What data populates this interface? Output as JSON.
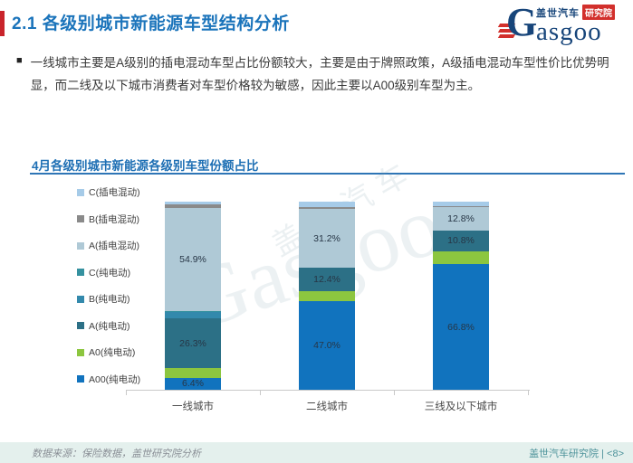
{
  "page": {
    "title": "2.1 各级别城市新能源车型结构分析",
    "bullet_text": "一线城市主要是A级别的插电混动车型占比份额较大，主要是由于牌照政策，A级插电混动车型性价比优势明显，而二线及以下城市消费者对车型价格较为敏感，因此主要以A00级别车型为主。"
  },
  "logo": {
    "g": "G",
    "wordmark_rest": "asgoo",
    "brand_cn": "盖世汽车",
    "badge": "研究院"
  },
  "chart": {
    "title": "4月各级别城市新能源各级别车型份额占比",
    "watermark_en": "Gasgoo",
    "watermark_cn": "盖世汽车"
  },
  "chart_data": {
    "type": "bar",
    "stacked": true,
    "unit": "%",
    "title": "4月各级别城市新能源各级别车型份额占比",
    "categories": [
      "一线城市",
      "二线城市",
      "三线及以下城市"
    ],
    "series_bottom_to_top": [
      {
        "name": "A00(纯电动)",
        "color": "#1173be",
        "values": [
          6.4,
          47.0,
          66.8
        ],
        "labels": [
          "6.4%",
          "47.0%",
          "66.8%"
        ]
      },
      {
        "name": "A0(纯电动)",
        "color": "#8cc63f",
        "values": [
          5.2,
          5.4,
          7.0
        ],
        "labels": [
          "",
          "",
          ""
        ]
      },
      {
        "name": "A(纯电动)",
        "color": "#2c7086",
        "values": [
          26.3,
          12.4,
          10.8
        ],
        "labels": [
          "26.3%",
          "12.4%",
          "10.8%"
        ]
      },
      {
        "name": "B(纯电动)",
        "color": "#3389ac",
        "values": [
          3.4,
          0,
          0
        ],
        "labels": [
          "",
          "",
          ""
        ]
      },
      {
        "name": "C(纯电动)",
        "color": "#35919f",
        "values": [
          0.6,
          0,
          0
        ],
        "labels": [
          "",
          "",
          ""
        ]
      },
      {
        "name": "A(插电混动)",
        "color": "#afc9d6",
        "values": [
          54.9,
          31.2,
          12.8
        ],
        "labels": [
          "54.9%",
          "31.2%",
          "12.8%"
        ]
      },
      {
        "name": "B(插电混动)",
        "color": "#8a8a8a",
        "values": [
          2.0,
          1.0,
          0.4
        ],
        "labels": [
          "",
          "",
          ""
        ]
      },
      {
        "name": "C(插电混动)",
        "color": "#a6cbe8",
        "values": [
          1.2,
          3.0,
          2.2
        ],
        "labels": [
          "",
          "",
          ""
        ]
      }
    ],
    "legend_order_top_to_bottom": [
      "C(插电混动)",
      "B(插电混动)",
      "A(插电混动)",
      "C(纯电动)",
      "B(纯电动)",
      "A(纯电动)",
      "A0(纯电动)",
      "A00(纯电动)"
    ],
    "legend_position": "left",
    "ylim": [
      0,
      100
    ],
    "grid": false,
    "xlabel": "",
    "ylabel": ""
  },
  "footer": {
    "source": "数据来源：保险数据，盖世研究院分析",
    "right": "盖世汽车研究院 | <8>",
    "page_number": "<8>"
  },
  "colors": {
    "title_blue": "#1b74bb",
    "accent_red": "#c9242b",
    "chart_title_blue": "#1e6fb4",
    "underline_blue": "#2e75b6",
    "footer_bg": "#e4f0ed",
    "footer_right_teal": "#4e939b",
    "axis_gray": "#c9c9c9"
  }
}
